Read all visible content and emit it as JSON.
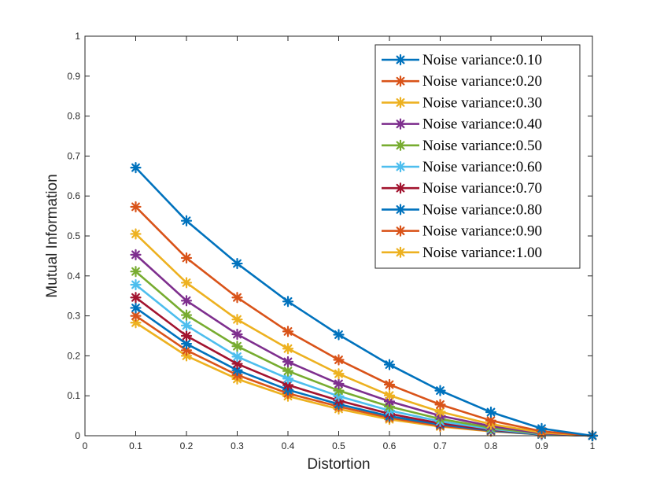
{
  "chart_data": {
    "type": "line",
    "title": "",
    "xlabel": "Distortion",
    "ylabel": "Mutual Information",
    "xlim": [
      0,
      1
    ],
    "ylim": [
      0,
      1
    ],
    "x_ticks": [
      "0",
      "0.1",
      "0.2",
      "0.3",
      "0.4",
      "0.5",
      "0.6",
      "0.7",
      "0.8",
      "0.9",
      "1"
    ],
    "y_ticks": [
      "0",
      "0.1",
      "0.2",
      "0.3",
      "0.4",
      "0.5",
      "0.6",
      "0.7",
      "0.8",
      "0.9",
      "1"
    ],
    "grid": false,
    "legend_position": "top-right",
    "marker": "asterisk",
    "x": [
      0.1,
      0.2,
      0.3,
      0.4,
      0.5,
      0.6,
      0.7,
      0.8,
      0.9,
      1.0
    ],
    "series": [
      {
        "name": "Noise variance:0.10",
        "color": "#0072BD",
        "values": [
          0.671,
          0.538,
          0.431,
          0.336,
          0.253,
          0.178,
          0.113,
          0.059,
          0.018,
          0.0
        ]
      },
      {
        "name": "Noise variance:0.20",
        "color": "#D95319",
        "values": [
          0.573,
          0.445,
          0.346,
          0.261,
          0.19,
          0.128,
          0.078,
          0.038,
          0.011,
          0.0
        ]
      },
      {
        "name": "Noise variance:0.30",
        "color": "#EDB120",
        "values": [
          0.505,
          0.383,
          0.291,
          0.218,
          0.155,
          0.101,
          0.06,
          0.029,
          0.008,
          0.0
        ]
      },
      {
        "name": "Noise variance:0.40",
        "color": "#7E2F8E",
        "values": [
          0.453,
          0.338,
          0.254,
          0.185,
          0.13,
          0.086,
          0.05,
          0.024,
          0.006,
          0.0
        ]
      },
      {
        "name": "Noise variance:0.50",
        "color": "#77AC30",
        "values": [
          0.411,
          0.302,
          0.224,
          0.162,
          0.113,
          0.073,
          0.042,
          0.02,
          0.005,
          0.0
        ]
      },
      {
        "name": "Noise variance:0.60",
        "color": "#4DBEEE",
        "values": [
          0.378,
          0.276,
          0.198,
          0.143,
          0.099,
          0.063,
          0.036,
          0.017,
          0.004,
          0.0
        ]
      },
      {
        "name": "Noise variance:0.70",
        "color": "#A2142F",
        "values": [
          0.346,
          0.25,
          0.18,
          0.127,
          0.088,
          0.055,
          0.031,
          0.015,
          0.004,
          0.0
        ]
      },
      {
        "name": "Noise variance:0.80",
        "color": "#0072BD",
        "values": [
          0.32,
          0.23,
          0.164,
          0.115,
          0.079,
          0.049,
          0.028,
          0.013,
          0.003,
          0.0
        ]
      },
      {
        "name": "Noise variance:0.90",
        "color": "#D95319",
        "values": [
          0.3,
          0.214,
          0.152,
          0.106,
          0.073,
          0.045,
          0.025,
          0.012,
          0.003,
          0.0
        ]
      },
      {
        "name": "Noise variance:1.00",
        "color": "#EDB120",
        "values": [
          0.283,
          0.2,
          0.142,
          0.099,
          0.067,
          0.041,
          0.023,
          0.011,
          0.003,
          0.0
        ]
      }
    ]
  }
}
